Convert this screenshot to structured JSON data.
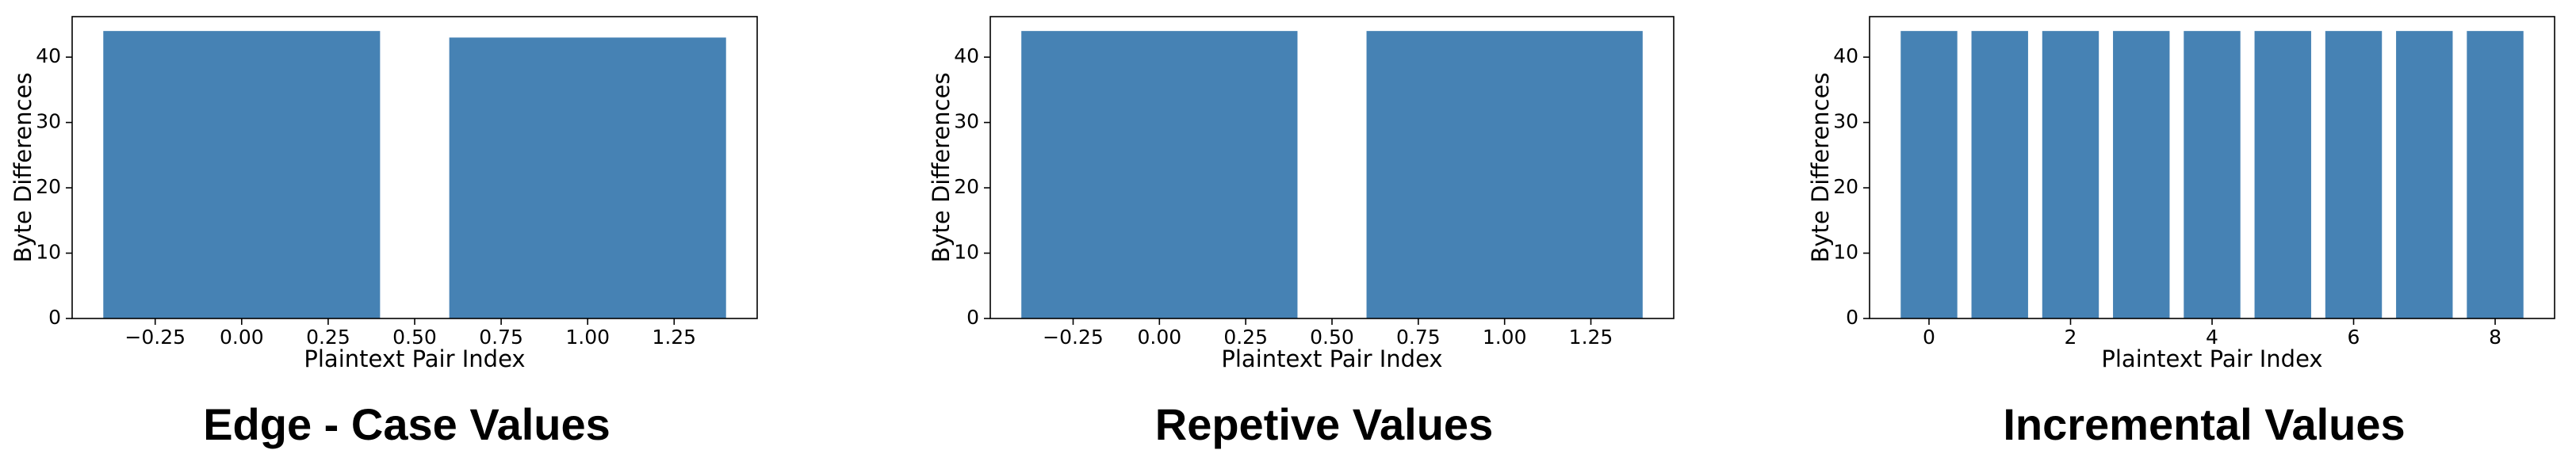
{
  "chart_data": [
    {
      "type": "bar",
      "caption": "Edge - Case Values",
      "xlabel": "Plaintext Pair Index",
      "ylabel": "Byte Differences",
      "x": [
        0,
        1
      ],
      "values": [
        44,
        43
      ],
      "color": "#4682b4",
      "xlim": [
        -0.49,
        1.49
      ],
      "ylim": [
        0,
        46.2
      ],
      "xticks": [
        {
          "value": -0.25,
          "label": "−0.25"
        },
        {
          "value": 0,
          "label": "0.00"
        },
        {
          "value": 0.25,
          "label": "0.25"
        },
        {
          "value": 0.5,
          "label": "0.50"
        },
        {
          "value": 0.75,
          "label": "0.75"
        },
        {
          "value": 1,
          "label": "1.00"
        },
        {
          "value": 1.25,
          "label": "1.25"
        }
      ],
      "yticks": [
        0,
        10,
        20,
        30,
        40
      ]
    },
    {
      "type": "bar",
      "caption": "Repetive Values",
      "xlabel": "Plaintext Pair Index",
      "ylabel": "Byte Differences",
      "x": [
        0,
        1
      ],
      "values": [
        44,
        44
      ],
      "color": "#4682b4",
      "xlim": [
        -0.49,
        1.49
      ],
      "ylim": [
        0,
        46.2
      ],
      "xticks": [
        {
          "value": -0.25,
          "label": "−0.25"
        },
        {
          "value": 0,
          "label": "0.00"
        },
        {
          "value": 0.25,
          "label": "0.25"
        },
        {
          "value": 0.5,
          "label": "0.50"
        },
        {
          "value": 0.75,
          "label": "0.75"
        },
        {
          "value": 1,
          "label": "1.00"
        },
        {
          "value": 1.25,
          "label": "1.25"
        }
      ],
      "yticks": [
        0,
        10,
        20,
        30,
        40
      ]
    },
    {
      "type": "bar",
      "caption": "Incremental Values",
      "xlabel": "Plaintext Pair Index",
      "ylabel": "Byte Differences",
      "x": [
        0,
        1,
        2,
        3,
        4,
        5,
        6,
        7,
        8
      ],
      "values": [
        44,
        44,
        44,
        44,
        44,
        44,
        44,
        44,
        44
      ],
      "color": "#4682b4",
      "xlim": [
        -0.84,
        8.84
      ],
      "ylim": [
        0,
        46.2
      ],
      "xticks": [
        0,
        2,
        4,
        6,
        8
      ],
      "yticks": [
        0,
        10,
        20,
        30,
        40
      ]
    }
  ]
}
